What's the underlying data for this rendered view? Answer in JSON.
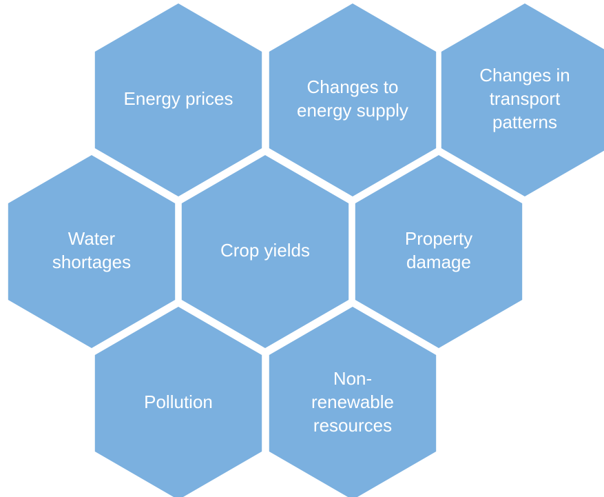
{
  "nodes": [
    {
      "lines": [
        "Energy prices"
      ]
    },
    {
      "lines": [
        "Changes to",
        "energy supply"
      ]
    },
    {
      "lines": [
        "Changes in",
        "transport",
        "patterns"
      ]
    },
    {
      "lines": [
        "Water",
        "shortages"
      ]
    },
    {
      "lines": [
        "Crop yields"
      ]
    },
    {
      "lines": [
        "Property",
        "damage"
      ]
    },
    {
      "lines": [
        "Pollution"
      ]
    },
    {
      "lines": [
        "Non-",
        "renewable",
        "resources"
      ]
    }
  ]
}
